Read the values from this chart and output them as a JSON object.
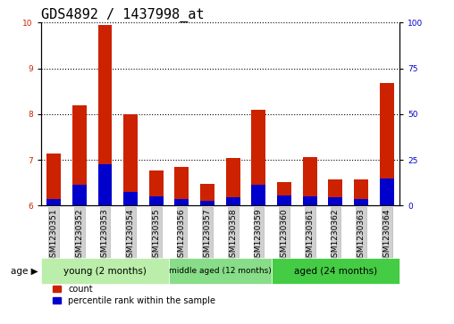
{
  "title": "GDS4892 / 1437998_at",
  "samples": [
    "GSM1230351",
    "GSM1230352",
    "GSM1230353",
    "GSM1230354",
    "GSM1230355",
    "GSM1230356",
    "GSM1230357",
    "GSM1230358",
    "GSM1230359",
    "GSM1230360",
    "GSM1230361",
    "GSM1230362",
    "GSM1230363",
    "GSM1230364"
  ],
  "count_values": [
    7.15,
    8.2,
    9.95,
    8.0,
    6.77,
    6.85,
    6.47,
    7.05,
    8.1,
    6.52,
    7.07,
    6.57,
    6.57,
    8.68
  ],
  "percentile_values": [
    6.15,
    6.45,
    6.9,
    6.3,
    6.2,
    6.15,
    6.1,
    6.18,
    6.45,
    6.22,
    6.2,
    6.18,
    6.15,
    6.6
  ],
  "ylim": [
    6,
    10
  ],
  "yticks_left": [
    6,
    7,
    8,
    9,
    10
  ],
  "yticks_right": [
    0,
    25,
    50,
    75,
    100
  ],
  "bar_color_red": "#cc2200",
  "bar_color_blue": "#0000cc",
  "groups": [
    {
      "label": "young (2 months)",
      "start": 0,
      "end": 5,
      "color": "#bbeeaa"
    },
    {
      "label": "middle aged (12 months)",
      "start": 5,
      "end": 9,
      "color": "#88dd88"
    },
    {
      "label": "aged (24 months)",
      "start": 9,
      "end": 14,
      "color": "#44cc44"
    }
  ],
  "age_label": "age",
  "legend_count": "count",
  "legend_percentile": "percentile rank within the sample",
  "bar_width": 0.55,
  "background_color": "#ffffff",
  "plot_bg": "#ffffff",
  "title_fontsize": 11,
  "tick_label_fontsize": 6.5,
  "axis_label_fontsize": 8,
  "grid_color": "#000000",
  "spine_color": "#000000"
}
